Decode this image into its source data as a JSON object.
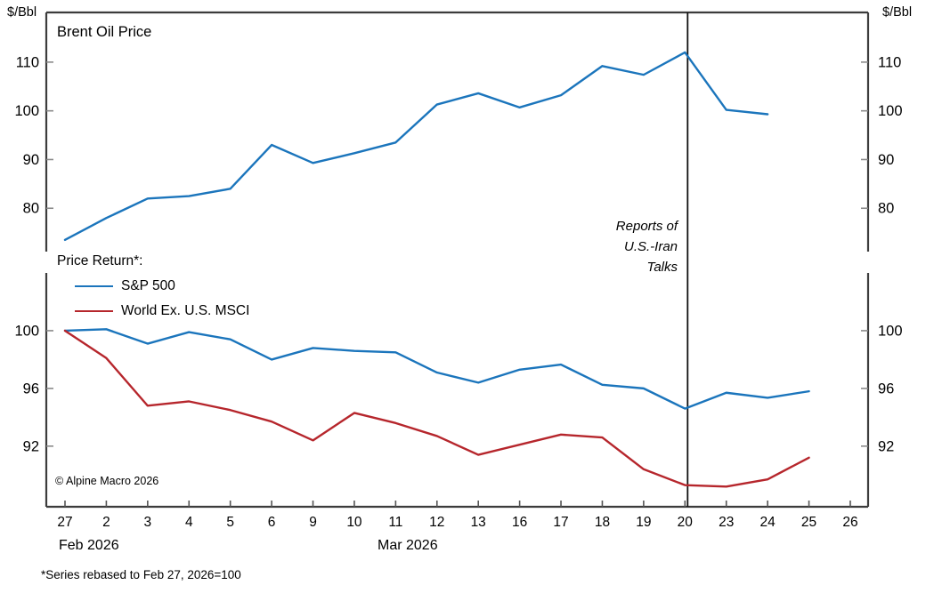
{
  "units": {
    "left": "$/Bbl",
    "right": "$/Bbl"
  },
  "top_panel": {
    "title": "Brent Oil Price"
  },
  "annotation": {
    "line1": "Reports of",
    "line2": "U.S.-Iran",
    "line3": "Talks"
  },
  "legend": {
    "title": "Price Return*:",
    "items": [
      {
        "label": "S&P 500",
        "color": "#1B75BC"
      },
      {
        "label": "World Ex. U.S. MSCI",
        "color": "#B6262C"
      }
    ]
  },
  "copyright": "© Alpine Macro 2026",
  "axis": {
    "feb_label": "Feb 2026",
    "mar_label": "Mar 2026"
  },
  "footnote": "*Series rebased to Feb 27, 2026=100",
  "colors": {
    "axis": "#3c3c3c",
    "y_tick": "#8a8a8a",
    "x_tick": "#555555",
    "event_line": "#111111"
  },
  "chart_data": [
    {
      "type": "line",
      "title": "Brent Oil Price",
      "ylabel": "$/Bbl",
      "x_categories": [
        "27",
        "2",
        "3",
        "4",
        "5",
        "6",
        "9",
        "10",
        "11",
        "12",
        "13",
        "16",
        "17",
        "18",
        "19",
        "20",
        "23",
        "24",
        "25",
        "26"
      ],
      "x_dates": [
        "Feb 27",
        "Mar 2",
        "Mar 3",
        "Mar 4",
        "Mar 5",
        "Mar 6",
        "Mar 9",
        "Mar 10",
        "Mar 11",
        "Mar 12",
        "Mar 13",
        "Mar 16",
        "Mar 17",
        "Mar 18",
        "Mar 19",
        "Mar 20",
        "Mar 23",
        "Mar 24"
      ],
      "series": [
        {
          "name": "Brent Oil Price",
          "color": "#1B75BC",
          "values": [
            73.5,
            78,
            82,
            82.5,
            84,
            93,
            89.3,
            91.3,
            93.5,
            101.3,
            103.6,
            100.7,
            103.2,
            109.2,
            107.4,
            112,
            100.2,
            99.3
          ]
        }
      ],
      "y_ticks": [
        110,
        100,
        90,
        80
      ],
      "ylim": [
        71.1,
        120.2
      ],
      "grid": false,
      "event_line": {
        "x_category": "20",
        "label": "Reports of U.S.-Iran Talks"
      }
    },
    {
      "type": "line",
      "title": "Price Return*:",
      "x_categories": [
        "27",
        "2",
        "3",
        "4",
        "5",
        "6",
        "9",
        "10",
        "11",
        "12",
        "13",
        "16",
        "17",
        "18",
        "19",
        "20",
        "23",
        "24",
        "25",
        "26"
      ],
      "series": [
        {
          "name": "S&P 500",
          "color": "#1B75BC",
          "values": [
            100,
            100.1,
            99.1,
            99.9,
            99.4,
            98.0,
            98.8,
            98.6,
            98.5,
            97.1,
            96.4,
            97.3,
            97.65,
            96.25,
            96.0,
            94.6,
            95.7,
            95.35,
            95.8
          ]
        },
        {
          "name": "World Ex. U.S. MSCI",
          "color": "#B6262C",
          "values": [
            100,
            98.1,
            94.8,
            95.1,
            94.5,
            93.7,
            92.4,
            94.3,
            93.6,
            92.7,
            91.4,
            92.1,
            92.8,
            92.6,
            90.4,
            89.3,
            89.2,
            89.7,
            91.2
          ]
        }
      ],
      "y_ticks": [
        100,
        96,
        92
      ],
      "ylim": [
        87.8,
        104.0
      ],
      "grid": false,
      "legend_position": "upper-left",
      "footnote": "*Series rebased to Feb 27, 2026=100"
    }
  ]
}
